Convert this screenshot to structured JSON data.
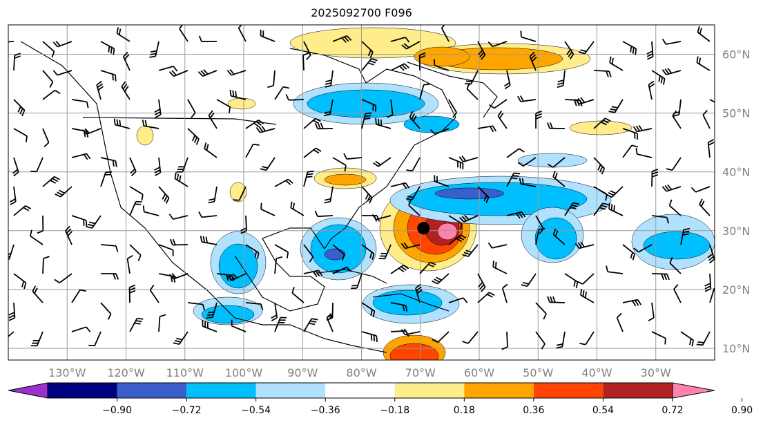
{
  "title": "2025092700 F096",
  "map": {
    "lon_labels": [
      "130°W",
      "120°W",
      "110°W",
      "100°W",
      "90°W",
      "80°W",
      "70°W",
      "60°W",
      "50°W",
      "40°W",
      "30°W"
    ],
    "lat_labels": [
      "60°N",
      "50°N",
      "40°N",
      "30°N",
      "20°N",
      "10°N"
    ],
    "lon_values": [
      -130,
      -120,
      -110,
      -100,
      -90,
      -80,
      -70,
      -60,
      -50,
      -40,
      -30
    ],
    "lat_values": [
      60,
      50,
      40,
      30,
      20,
      10
    ],
    "lon_range": [
      -140,
      -20
    ],
    "lat_range": [
      8,
      65
    ],
    "storm_marker": {
      "lon": -69,
      "lat": 31
    }
  },
  "colorbar": {
    "ticks": [
      "−0.90",
      "−0.72",
      "−0.54",
      "−0.36",
      "−0.18",
      "0.18",
      "0.36",
      "0.54",
      "0.72",
      "0.90"
    ],
    "colors": [
      "#9932CC",
      "#000080",
      "#3A5FCD",
      "#00BFFF",
      "#B0E2FF",
      "#FFFFFF",
      "#FFEC8B",
      "#FFA500",
      "#FF4500",
      "#B22222",
      "#FF82AB"
    ]
  }
}
